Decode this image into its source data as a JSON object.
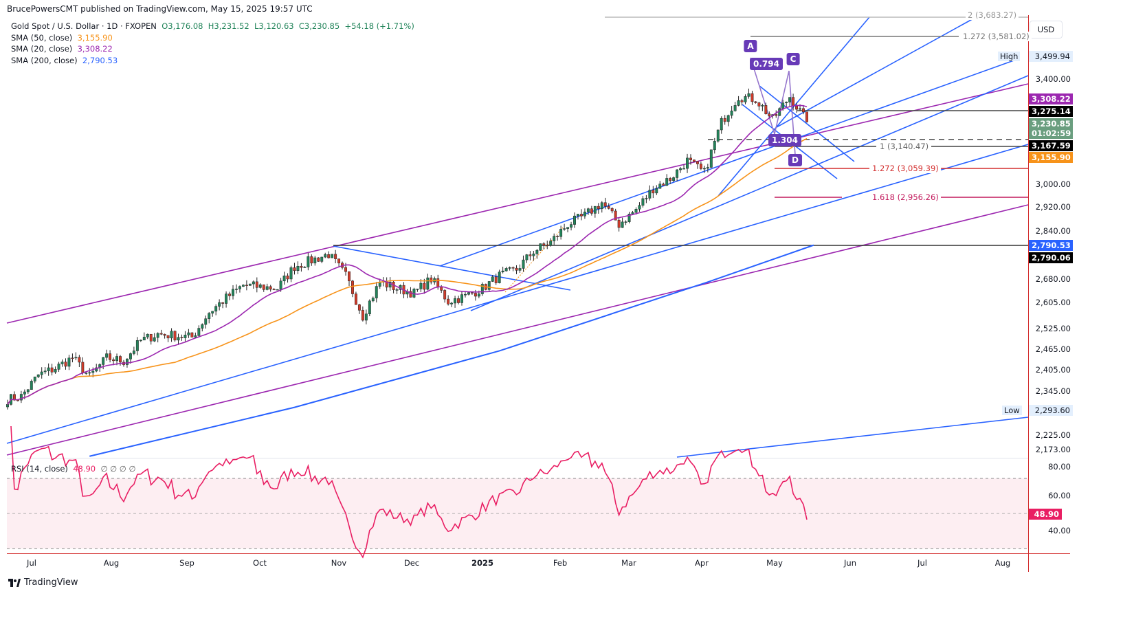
{
  "header": {
    "publisher": "BrucePowersCMT published on TradingView.com, May 15, 2025 19:57 UTC"
  },
  "legend": {
    "symbol": "Gold Spot / U.S. Dollar · 1D · FXOPEN",
    "open": "O3,176.08",
    "high": "H3,231.52",
    "low": "L3,120.63",
    "close": "C3,230.85",
    "change": "+54.18 (+1.71%)",
    "sma50_label": "SMA (50, close)",
    "sma50_value": "3,155.90",
    "sma20_label": "SMA (20, close)",
    "sma20_value": "3,308.22",
    "sma200_label": "SMA (200, close)",
    "sma200_value": "2,790.53"
  },
  "currency": "USD",
  "price_axis": {
    "ticks": [
      "3,400.00",
      "3,000.00",
      "2,920.00",
      "2,840.00",
      "2,680.00",
      "2,605.00",
      "2,525.00",
      "2,465.00",
      "2,405.00",
      "2,345.00",
      "2,225.00",
      "2,173.00"
    ],
    "tags": {
      "high_label": "High",
      "high": "3,499.94",
      "sma20": "3,308.22",
      "level1": "3,275.14",
      "last": "3,230.85",
      "countdown": "01:02:59",
      "level2": "3,167.59",
      "sma50": "3,155.90",
      "sma200": "2,790.53",
      "level3": "2,790.06",
      "low_label": "Low",
      "low": "2,293.60"
    }
  },
  "fib": {
    "top": "2 (3,683.27)",
    "f1272a": "1.272 (3,581.02)",
    "f1": "1 (3,140.47)",
    "f1272": "1.272 (3,059.39)",
    "f1618": "1.618 (2,956.26)"
  },
  "pattern": {
    "A": "A",
    "C": "C",
    "D": "D",
    "r1": "0.794",
    "r2": "1.304"
  },
  "rsi": {
    "label": "RSI (14, close)",
    "value": "48.90",
    "extra": "∅ ∅ ∅ ∅",
    "ticks": [
      "80.00",
      "60.00",
      "40.00"
    ]
  },
  "time_axis": [
    "Jul",
    "Aug",
    "Sep",
    "Oct",
    "Nov",
    "Dec",
    "2025",
    "Feb",
    "Mar",
    "Apr",
    "May",
    "Jun",
    "Jul",
    "Aug"
  ],
  "footer": {
    "brand": "TradingView"
  },
  "colors": {
    "up": "#22845a",
    "down": "#d03b2a",
    "sma50": "#f7931a",
    "sma20": "#9c27b0",
    "sma200": "#2962ff",
    "rsi": "#e91e63"
  },
  "chart_data": {
    "type": "candlestick",
    "title": "Gold Spot / U.S. Dollar · 1D · FXOPEN",
    "scale": "log",
    "ylim": [
      2173,
      3560
    ],
    "weekly_closes": [
      2320,
      2330,
      2390,
      2410,
      2440,
      2385,
      2440,
      2430,
      2490,
      2510,
      2505,
      2500,
      2575,
      2620,
      2660,
      2655,
      2650,
      2720,
      2740,
      2760,
      2690,
      2565,
      2670,
      2650,
      2635,
      2680,
      2610,
      2625,
      2650,
      2690,
      2710,
      2770,
      2800,
      2860,
      2890,
      2935,
      2860,
      2910,
      2985,
      3020,
      3085,
      3040,
      3230,
      3330,
      3320,
      3240,
      3330,
      3230.85
    ],
    "sma200_points": [
      [
        24,
        2170
      ],
      [
        84,
        2300
      ],
      [
        144,
        2460
      ],
      [
        205,
        2670
      ],
      [
        236,
        2790
      ]
    ],
    "last_close": 3230.85
  }
}
